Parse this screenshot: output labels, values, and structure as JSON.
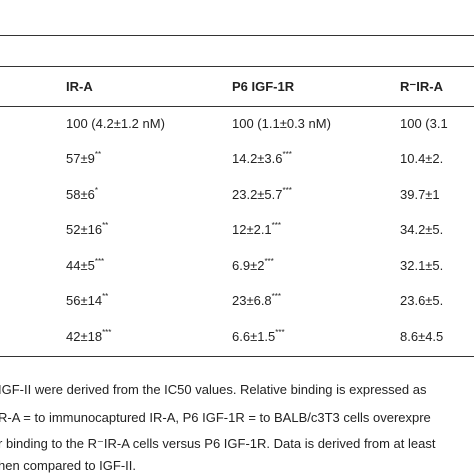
{
  "table": {
    "header": [
      "IR-A",
      "P6 IGF-1R",
      "R⁻IR-A"
    ],
    "rows": [
      [
        {
          "text": "100 (4.2±1.2 nM)"
        },
        {
          "text": "100 (1.1±0.3 nM)"
        },
        {
          "text": "100 (3.1"
        }
      ],
      [
        {
          "text": "57±9",
          "sup": "**"
        },
        {
          "text": "14.2±3.6",
          "sup": "***"
        },
        {
          "text": "10.4±2."
        }
      ],
      [
        {
          "text": "58±6",
          "sup": "*"
        },
        {
          "text": "23.2±5.7",
          "sup": "***"
        },
        {
          "text": "39.7±1"
        }
      ],
      [
        {
          "text": "52±16",
          "sup": "**"
        },
        {
          "text": "12±2.1",
          "sup": "***"
        },
        {
          "text": "34.2±5."
        }
      ],
      [
        {
          "text": "44±5",
          "sup": "***"
        },
        {
          "text": "6.9±2",
          "sup": "***"
        },
        {
          "text": "32.1±5."
        }
      ],
      [
        {
          "text": "56±14",
          "sup": "**"
        },
        {
          "text": "23±6.8",
          "sup": "***"
        },
        {
          "text": "23.6±5."
        }
      ],
      [
        {
          "text": "42±18",
          "sup": "***"
        },
        {
          "text": "6.6±1.5",
          "sup": "***"
        },
        {
          "text": "8.6±4.5"
        }
      ]
    ]
  },
  "footnotes": [
    "IGF-II were derived from the IC50 values. Relative binding is expressed as",
    "R-A = to immunocaptured IR-A, P6 IGF-1R = to BALB/c3T3 cells overexpre",
    "r binding to the R⁻IR-A cells versus P6 IGF-1R. Data is derived from at least",
    "hen compared to IGF-II."
  ]
}
